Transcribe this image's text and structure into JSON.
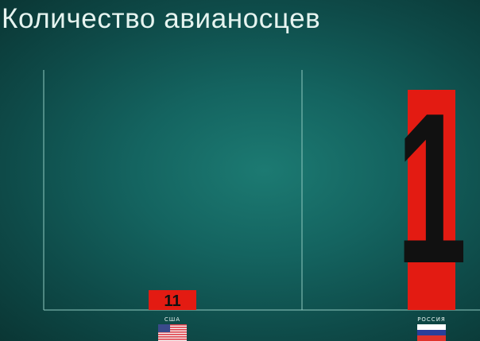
{
  "chart_data": {
    "type": "bar",
    "title": "Количество авианосцев",
    "categories": [
      "США",
      "РОССИЯ"
    ],
    "values": [
      11,
      1
    ],
    "data_labels": [
      "11",
      "1"
    ],
    "legend_icons": [
      "usa-flag-icon",
      "russia-flag-icon"
    ],
    "grid": false,
    "colors": {
      "bar": "#e31b12",
      "label": "#111111",
      "axis": "#8fc9bf",
      "text": "#e6f4f0"
    }
  }
}
